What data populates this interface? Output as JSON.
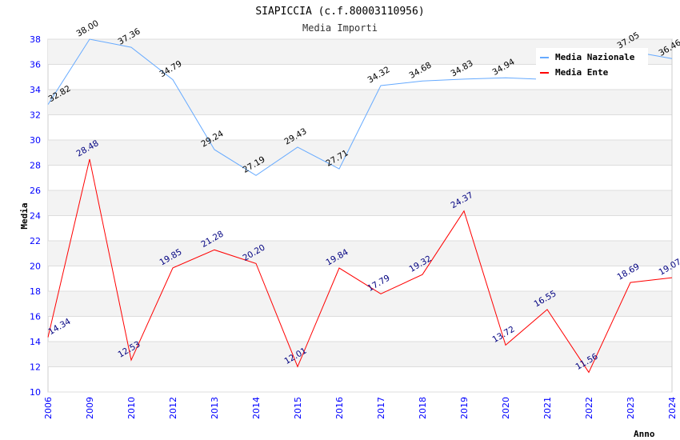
{
  "chart_data": {
    "type": "line",
    "title": "SIAPICCIA (c.f.80003110956)",
    "subtitle": "Media Importi",
    "xlabel": "Anno",
    "ylabel": "Media",
    "ylim": [
      10,
      38
    ],
    "yticks": [
      10,
      12,
      14,
      16,
      18,
      20,
      22,
      24,
      26,
      28,
      30,
      32,
      34,
      36,
      38
    ],
    "categories": [
      "2006",
      "2009",
      "2010",
      "2012",
      "2013",
      "2014",
      "2015",
      "2016",
      "2017",
      "2018",
      "2019",
      "2020",
      "2021",
      "2022",
      "2023",
      "2024"
    ],
    "legend_position": "top-right",
    "series": [
      {
        "name": "Media Nazionale",
        "color": "#66aaff",
        "label_color": "#000000",
        "values": [
          32.82,
          38.0,
          37.36,
          34.79,
          29.24,
          27.19,
          29.43,
          27.71,
          34.32,
          34.68,
          34.83,
          34.94,
          34.8,
          null,
          37.05,
          36.46
        ],
        "labels": [
          "32.82",
          "38.00",
          "37.36",
          "34.79",
          "29.24",
          "27.19",
          "29.43",
          "27.71",
          "34.32",
          "34.68",
          "34.83",
          "34.94",
          "",
          "",
          "37.05",
          "36.46"
        ]
      },
      {
        "name": "Media Ente",
        "color": "#ff0000",
        "label_color": "#000080",
        "values": [
          14.34,
          28.48,
          12.53,
          19.85,
          21.28,
          20.2,
          12.01,
          19.84,
          17.79,
          19.32,
          24.37,
          13.72,
          16.55,
          11.56,
          18.69,
          19.07
        ],
        "labels": [
          "14.34",
          "28.48",
          "12.53",
          "19.85",
          "21.28",
          "20.20",
          "12.01",
          "19.84",
          "17.79",
          "19.32",
          "24.37",
          "13.72",
          "16.55",
          "11.56",
          "18.69",
          "19.07"
        ]
      }
    ]
  }
}
